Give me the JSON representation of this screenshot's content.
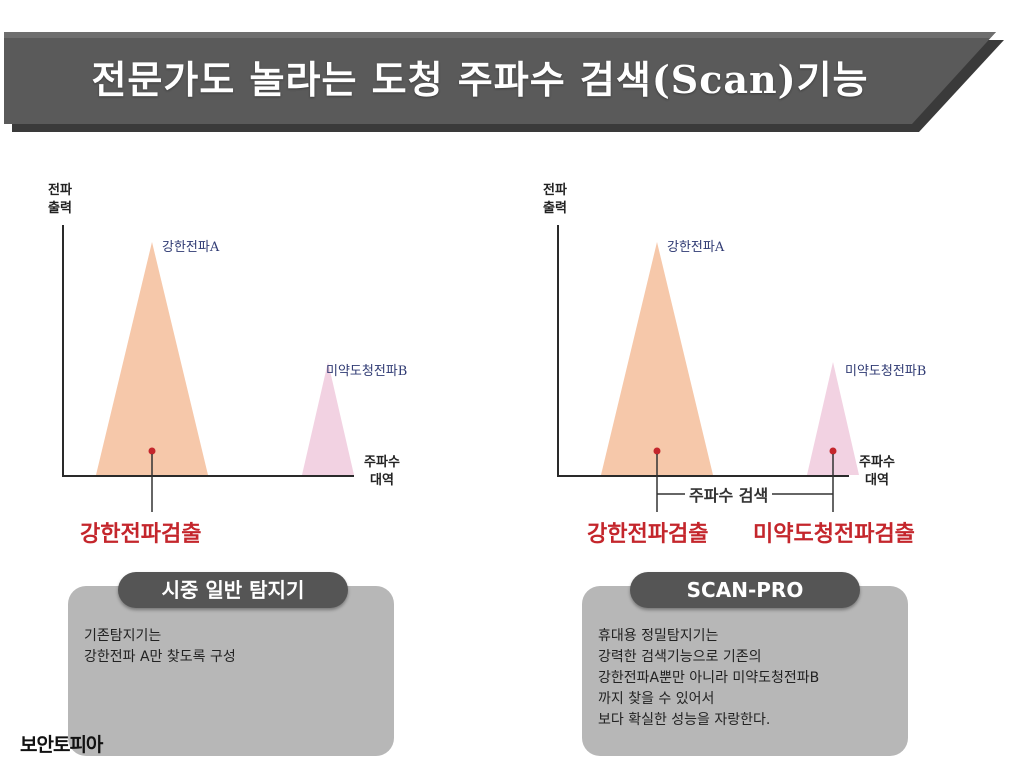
{
  "banner": {
    "title": "전문가도 놀라는 도청 주파수 검색(Scan)기능"
  },
  "left_chart": {
    "ylabel": "전파\n출력",
    "xlabel": "주파수\n대역",
    "peak_a_label": "강한전파A",
    "peak_b_label": "미약도청전파B",
    "detect_label": "강한전파검출"
  },
  "right_chart": {
    "ylabel": "전파\n출력",
    "xlabel": "주파수\n대역",
    "peak_a_label": "강한전파A",
    "peak_b_label": "미약도청전파B",
    "scan_label": "주파수 검색",
    "detect_a_label": "강한전파검출",
    "detect_b_label": "미약도청전파검출"
  },
  "left_box": {
    "title": "시중 일반 탐지기",
    "text": "기존탐지기는\n강한전파 A만 찾도록 구성"
  },
  "right_box": {
    "title": "SCAN-PRO",
    "text": "휴대용 정밀탐지기는\n강력한 검색기능으로 기존의\n강한전파A뿐만 아니라 미약도청전파B\n까지 찾을 수 있어서\n보다 확실한 성능을 자랑한다."
  },
  "logo": {
    "text": "보안토피아"
  },
  "colors": {
    "banner": "#5a5a5a",
    "peak_a": "#f6c8aa",
    "peak_b": "#f2d2e2",
    "detect": "#c4262c",
    "peak_label": "#2f3a73"
  }
}
